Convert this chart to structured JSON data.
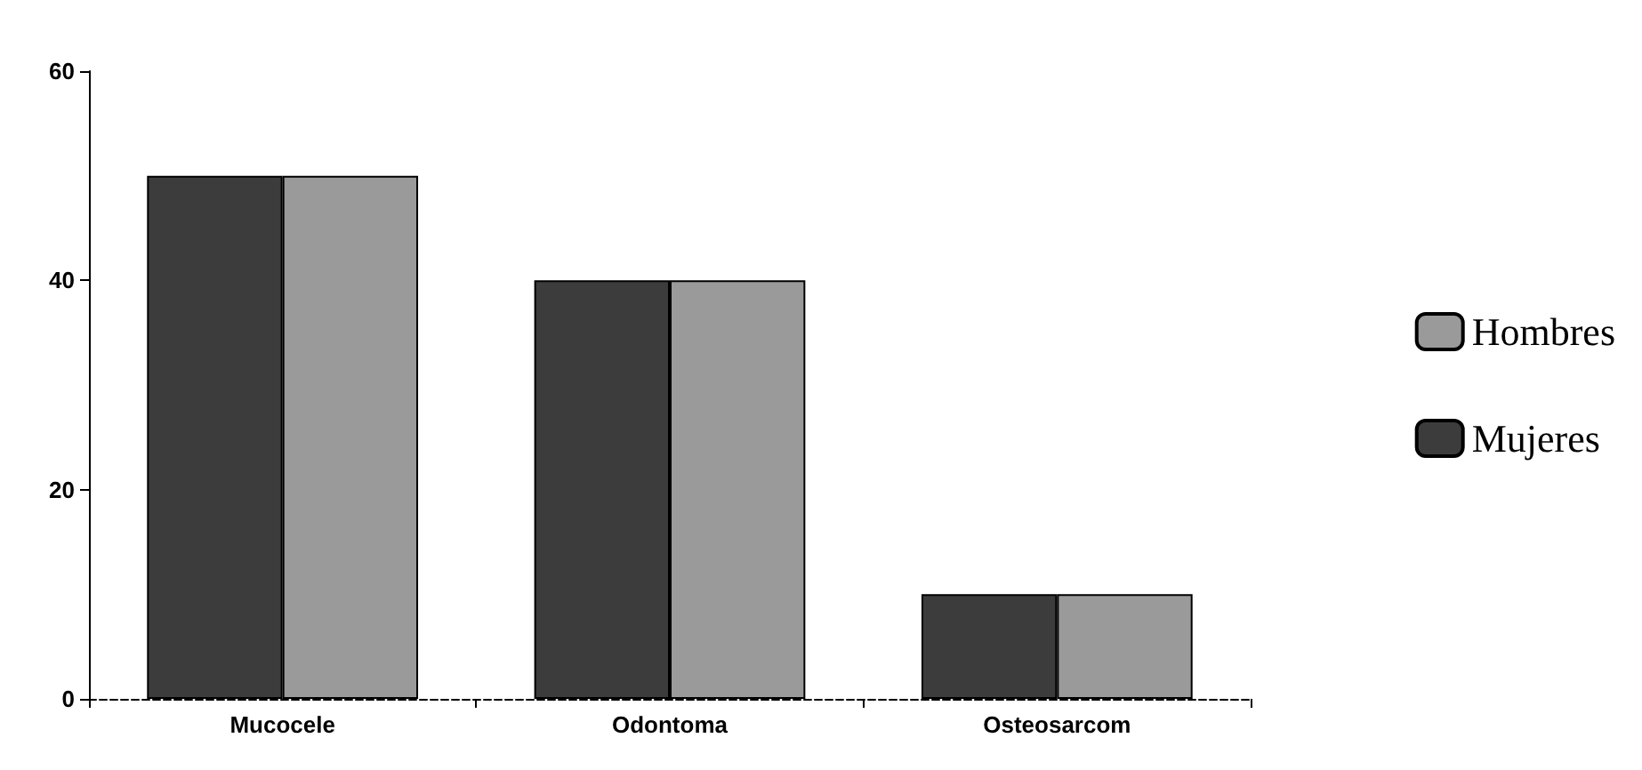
{
  "chart_data": {
    "type": "bar",
    "categories": [
      "Mucocele",
      "Odontoma",
      "Osteosarcom"
    ],
    "series": [
      {
        "name": "Mujeres",
        "color": "#3c3c3c",
        "values": [
          50,
          40,
          10
        ]
      },
      {
        "name": "Hombres",
        "color": "#9a9a9a",
        "values": [
          50,
          40,
          10
        ]
      }
    ],
    "ylim": [
      0,
      60
    ],
    "yticks": [
      0,
      20,
      40,
      60
    ],
    "grid": false,
    "legend": "right"
  }
}
